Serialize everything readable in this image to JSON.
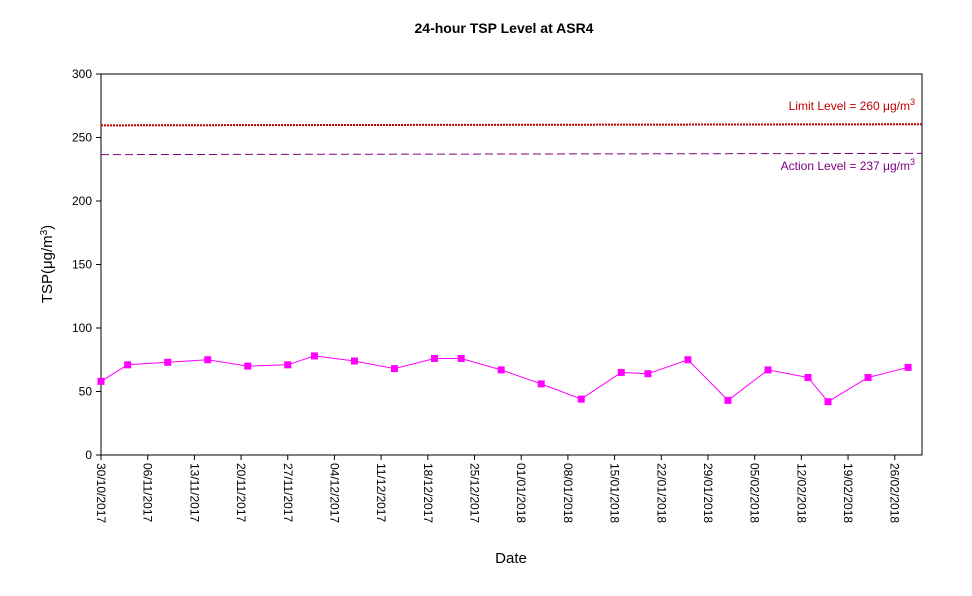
{
  "chart_data": {
    "type": "line",
    "title": "24-hour TSP Level at ASR4",
    "xlabel": "Date",
    "ylabel": "TSP(μg/m³)",
    "ylabel_parts": {
      "base": "TSP(μg/m",
      "sup": "3",
      "close": ")"
    },
    "ylim": [
      0,
      300
    ],
    "yticks": [
      0,
      50,
      100,
      150,
      200,
      250,
      300
    ],
    "xlim": [
      "2017-10-30",
      "2018-02-26"
    ],
    "xticks": [
      "30/10/2017",
      "06/11/2017",
      "13/11/2017",
      "20/11/2017",
      "27/11/2017",
      "04/12/2017",
      "11/12/2017",
      "18/12/2017",
      "25/12/2017",
      "01/01/2018",
      "08/01/2018",
      "15/01/2018",
      "22/01/2018",
      "29/01/2018",
      "05/02/2018",
      "12/02/2018",
      "19/02/2018",
      "26/02/2018"
    ],
    "grid": false,
    "series": [
      {
        "color": "#ff00ff",
        "marker": "square",
        "points": [
          {
            "date": "2017-10-30",
            "value": 58
          },
          {
            "date": "2017-11-03",
            "value": 71
          },
          {
            "date": "2017-11-09",
            "value": 73
          },
          {
            "date": "2017-11-15",
            "value": 75
          },
          {
            "date": "2017-11-21",
            "value": 70
          },
          {
            "date": "2017-11-27",
            "value": 71
          },
          {
            "date": "2017-12-01",
            "value": 78
          },
          {
            "date": "2017-12-07",
            "value": 74
          },
          {
            "date": "2017-12-13",
            "value": 68
          },
          {
            "date": "2017-12-19",
            "value": 76
          },
          {
            "date": "2017-12-23",
            "value": 76
          },
          {
            "date": "2017-12-29",
            "value": 67
          },
          {
            "date": "2018-01-04",
            "value": 56
          },
          {
            "date": "2018-01-10",
            "value": 44
          },
          {
            "date": "2018-01-16",
            "value": 65
          },
          {
            "date": "2018-01-20",
            "value": 64
          },
          {
            "date": "2018-01-26",
            "value": 75
          },
          {
            "date": "2018-02-01",
            "value": 43
          },
          {
            "date": "2018-02-07",
            "value": 67
          },
          {
            "date": "2018-02-13",
            "value": 61
          },
          {
            "date": "2018-02-16",
            "value": 42
          },
          {
            "date": "2018-02-22",
            "value": 61
          },
          {
            "date": "2018-02-28",
            "value": 69
          }
        ]
      }
    ],
    "reference_lines": [
      {
        "label": "Limit Level = 260 μg/m³",
        "label_base": "Limit Level = 260 μg/m",
        "label_sup": "3",
        "value": 260,
        "color": "#c00000",
        "style": "dotted"
      },
      {
        "label": "Action Level = 237 μg/m³",
        "label_base": "Action Level = 237 μg/m",
        "label_sup": "3",
        "value": 237,
        "color": "#800080",
        "style": "dashed"
      }
    ]
  }
}
